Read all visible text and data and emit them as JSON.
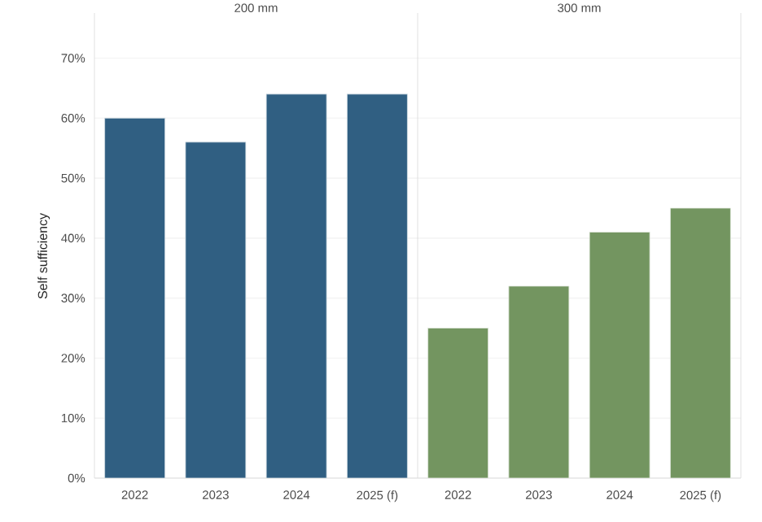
{
  "chart_data": [
    {
      "type": "bar",
      "title": "200 mm",
      "ylabel": "Self sufficiency",
      "categories": [
        "2022",
        "2023",
        "2024",
        "2025 (f)"
      ],
      "values": [
        60,
        56,
        64,
        64
      ],
      "color": "#305f82",
      "ylim": [
        0,
        74
      ],
      "yticks": [
        {
          "value": 0,
          "label": "0%"
        },
        {
          "value": 10,
          "label": "10%"
        },
        {
          "value": 20,
          "label": "20%"
        },
        {
          "value": 30,
          "label": "30%"
        },
        {
          "value": 40,
          "label": "40%"
        },
        {
          "value": 50,
          "label": "50%"
        },
        {
          "value": 60,
          "label": "60%"
        },
        {
          "value": 70,
          "label": "70%"
        }
      ],
      "grid": "y"
    },
    {
      "type": "bar",
      "title": "300 mm",
      "categories": [
        "2022",
        "2023",
        "2024",
        "2025 (f)"
      ],
      "values": [
        25,
        32,
        41,
        45
      ],
      "color": "#739560",
      "ylim": [
        0,
        74
      ],
      "yticks": [
        {
          "value": 0,
          "label": null
        },
        {
          "value": 10,
          "label": null
        },
        {
          "value": 20,
          "label": null
        },
        {
          "value": 30,
          "label": null
        },
        {
          "value": 40,
          "label": null
        },
        {
          "value": 50,
          "label": null
        },
        {
          "value": 60,
          "label": null
        },
        {
          "value": 70,
          "label": null
        }
      ],
      "grid": "y",
      "tick_labels": "x"
    }
  ]
}
